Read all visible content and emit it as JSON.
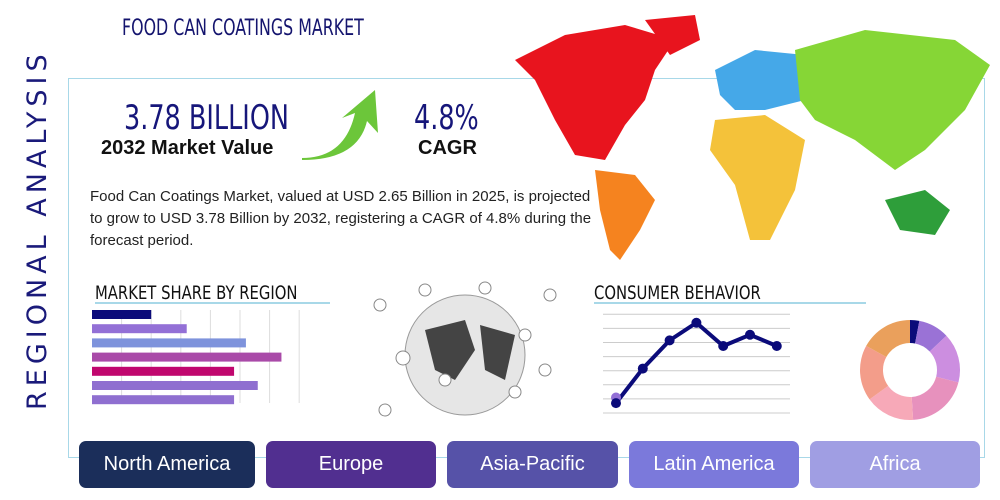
{
  "header": {
    "title": "FOOD CAN COATINGS MARKET",
    "side_label": "REGIONAL ANALYSIS"
  },
  "stats": {
    "market_value": "3.78 BILLION",
    "market_value_label": "2032 Market Value",
    "cagr": "4.8%",
    "cagr_label": "CAGR"
  },
  "description": "Food Can Coatings Market, valued at USD 2.65 Billion in 2025, is projected to grow to USD 3.78 Billion by 2032, registering a CAGR of 4.8% during the forecast period.",
  "sections": {
    "market_share": "MARKET SHARE BY REGION",
    "consumer": "CONSUMER BEHAVIOR"
  },
  "regions": [
    {
      "label": "North America",
      "color": "#1b2e5a"
    },
    {
      "label": "Europe",
      "color": "#512f90"
    },
    {
      "label": "Asia-Pacific",
      "color": "#5652a8"
    },
    {
      "label": "Latin America",
      "color": "#7b79db"
    },
    {
      "label": "Africa",
      "color": "#a09ee3"
    }
  ],
  "bar_values": [
    2.0,
    3.2,
    5.2,
    6.4,
    4.8,
    5.6,
    4.8
  ],
  "bar_colors": [
    "#0b0b7a",
    "#9370d6",
    "#7e93dc",
    "#a94aa8",
    "#c0076e",
    "#8f6fd0",
    "#8f6fd0"
  ],
  "line_values": [
    0.7,
    3.15,
    5.15,
    6.4,
    4.75,
    5.55,
    4.75
  ],
  "donut": [
    {
      "v": 3,
      "c": "#0b0b7a"
    },
    {
      "v": 10,
      "c": "#9a72d6"
    },
    {
      "v": 16,
      "c": "#cc8ee0"
    },
    {
      "v": 20,
      "c": "#e791bd"
    },
    {
      "v": 16,
      "c": "#f7a9b8"
    },
    {
      "v": 18,
      "c": "#f39d8a"
    },
    {
      "v": 17,
      "c": "#eaa05c"
    }
  ],
  "map_colors": {
    "north_america": "#e8141e",
    "south_america": "#f5831f",
    "europe": "#45a8e8",
    "asia": "#86d636",
    "africa": "#f4c23a",
    "oceania": "#2e9e3a"
  }
}
